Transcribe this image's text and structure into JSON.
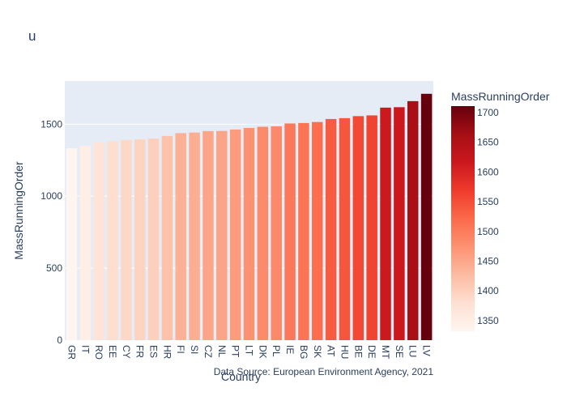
{
  "chart_data": {
    "type": "bar",
    "title": "u",
    "xlabel": "Country",
    "ylabel": "MassRunningOrder",
    "source_note": "Data Source: European Environment Agency, 2021",
    "categories": [
      "GR",
      "IT",
      "RO",
      "EE",
      "CY",
      "FR",
      "ES",
      "HR",
      "FI",
      "SI",
      "CZ",
      "NL",
      "PT",
      "LT",
      "DK",
      "PL",
      "IE",
      "BG",
      "SK",
      "AT",
      "HU",
      "BE",
      "DE",
      "MT",
      "SE",
      "LU",
      "LV"
    ],
    "values": [
      1332,
      1348,
      1372,
      1382,
      1390,
      1395,
      1400,
      1418,
      1438,
      1442,
      1452,
      1453,
      1463,
      1474,
      1482,
      1485,
      1505,
      1508,
      1515,
      1536,
      1542,
      1556,
      1561,
      1615,
      1618,
      1660,
      1711
    ],
    "ylim": [
      0,
      1800
    ],
    "yticks": [
      0,
      500,
      1000,
      1500
    ],
    "yticklabels": [
      "0",
      "500",
      "1000",
      "1500"
    ],
    "grid": true,
    "colorbar": {
      "title": "MassRunningOrder",
      "range": [
        1332,
        1711
      ],
      "ticks": [
        1350,
        1400,
        1450,
        1500,
        1550,
        1600,
        1650,
        1700
      ],
      "ticklabels": [
        "1350",
        "1400",
        "1450",
        "1500",
        "1550",
        "1600",
        "1650",
        "1700"
      ],
      "colorscale": [
        "#fff5f0",
        "#fee0d2",
        "#fcbba1",
        "#fc9272",
        "#fb6a4a",
        "#ef3b2c",
        "#cb181d",
        "#a50f15",
        "#67000d"
      ]
    },
    "colors": {
      "plot_bg": "#e5ecf6",
      "grid": "#ffffff",
      "text": "#2a3f5f"
    }
  }
}
